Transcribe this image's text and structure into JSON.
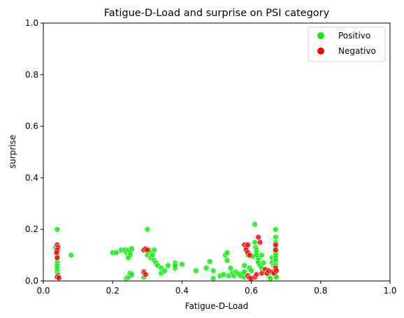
{
  "chart_data": {
    "type": "scatter",
    "title": "Fatigue-D-Load and surprise on PSI category",
    "xlabel": "Fatigue-D-Load",
    "ylabel": "surprise",
    "xlim": [
      0,
      1
    ],
    "ylim": [
      0,
      1
    ],
    "xticks": [
      "0.0",
      "0.2",
      "0.4",
      "0.6",
      "0.8",
      "1.0"
    ],
    "yticks": [
      "0.0",
      "0.2",
      "0.4",
      "0.6",
      "0.8",
      "1.0"
    ],
    "grid": false,
    "legend_position": "top-right",
    "series": [
      {
        "name": "Positivo",
        "color": "#00ee00",
        "points": [
          [
            0.04,
            0.2
          ],
          [
            0.035,
            0.13
          ],
          [
            0.04,
            0.12
          ],
          [
            0.038,
            0.11
          ],
          [
            0.04,
            0.1
          ],
          [
            0.04,
            0.09
          ],
          [
            0.04,
            0.08
          ],
          [
            0.04,
            0.07
          ],
          [
            0.04,
            0.06
          ],
          [
            0.04,
            0.05
          ],
          [
            0.04,
            0.04
          ],
          [
            0.04,
            0.03
          ],
          [
            0.042,
            0.025
          ],
          [
            0.08,
            0.1
          ],
          [
            0.2,
            0.11
          ],
          [
            0.21,
            0.11
          ],
          [
            0.225,
            0.12
          ],
          [
            0.235,
            0.12
          ],
          [
            0.24,
            0.11
          ],
          [
            0.245,
            0.12
          ],
          [
            0.25,
            0.11
          ],
          [
            0.255,
            0.125
          ],
          [
            0.25,
            0.1
          ],
          [
            0.245,
            0.09
          ],
          [
            0.24,
            0.01
          ],
          [
            0.245,
            0.015
          ],
          [
            0.25,
            0.02
          ],
          [
            0.25,
            0.03
          ],
          [
            0.255,
            0.025
          ],
          [
            0.29,
            0.12
          ],
          [
            0.3,
            0.2
          ],
          [
            0.305,
            0.12
          ],
          [
            0.31,
            0.11
          ],
          [
            0.3,
            0.1
          ],
          [
            0.31,
            0.09
          ],
          [
            0.315,
            0.1
          ],
          [
            0.32,
            0.12
          ],
          [
            0.32,
            0.08
          ],
          [
            0.325,
            0.07
          ],
          [
            0.33,
            0.06
          ],
          [
            0.34,
            0.05
          ],
          [
            0.34,
            0.03
          ],
          [
            0.35,
            0.04
          ],
          [
            0.36,
            0.06
          ],
          [
            0.38,
            0.07
          ],
          [
            0.38,
            0.05
          ],
          [
            0.38,
            0.06
          ],
          [
            0.4,
            0.065
          ],
          [
            0.29,
            0.015
          ],
          [
            0.44,
            0.04
          ],
          [
            0.47,
            0.05
          ],
          [
            0.48,
            0.075
          ],
          [
            0.49,
            0.04
          ],
          [
            0.49,
            0.01
          ],
          [
            0.51,
            0.02
          ],
          [
            0.52,
            0.025
          ],
          [
            0.525,
            0.1
          ],
          [
            0.53,
            0.11
          ],
          [
            0.53,
            0.08
          ],
          [
            0.535,
            0.02
          ],
          [
            0.54,
            0.05
          ],
          [
            0.545,
            0.03
          ],
          [
            0.55,
            0.02
          ],
          [
            0.555,
            0.035
          ],
          [
            0.56,
            0.03
          ],
          [
            0.565,
            0.025
          ],
          [
            0.57,
            0.02
          ],
          [
            0.575,
            0.03
          ],
          [
            0.58,
            0.015
          ],
          [
            0.58,
            0.035
          ],
          [
            0.58,
            0.06
          ],
          [
            0.585,
            0.14
          ],
          [
            0.59,
            0.1
          ],
          [
            0.595,
            0.05
          ],
          [
            0.6,
            0.04
          ],
          [
            0.6,
            0.1
          ],
          [
            0.605,
            0.095
          ],
          [
            0.61,
            0.22
          ],
          [
            0.61,
            0.15
          ],
          [
            0.612,
            0.13
          ],
          [
            0.615,
            0.12
          ],
          [
            0.615,
            0.11
          ],
          [
            0.615,
            0.1
          ],
          [
            0.62,
            0.09
          ],
          [
            0.62,
            0.08
          ],
          [
            0.62,
            0.07
          ],
          [
            0.625,
            0.06
          ],
          [
            0.63,
            0.05
          ],
          [
            0.63,
            0.1
          ],
          [
            0.635,
            0.07
          ],
          [
            0.64,
            0.04
          ],
          [
            0.645,
            0.03
          ],
          [
            0.65,
            0.02
          ],
          [
            0.655,
            0.01
          ],
          [
            0.66,
            0.09
          ],
          [
            0.66,
            0.07
          ],
          [
            0.665,
            0.06
          ],
          [
            0.67,
            0.2
          ],
          [
            0.67,
            0.17
          ],
          [
            0.67,
            0.15
          ],
          [
            0.67,
            0.13
          ],
          [
            0.67,
            0.12
          ],
          [
            0.67,
            0.11
          ],
          [
            0.67,
            0.1
          ],
          [
            0.67,
            0.09
          ],
          [
            0.67,
            0.08
          ],
          [
            0.67,
            0.06
          ],
          [
            0.67,
            0.05
          ],
          [
            0.67,
            0.03
          ],
          [
            0.67,
            0.02
          ],
          [
            0.672,
            0.015
          ]
        ]
      },
      {
        "name": "Negativo",
        "color": "#ff0000",
        "points": [
          [
            0.04,
            0.14
          ],
          [
            0.042,
            0.13
          ],
          [
            0.04,
            0.12
          ],
          [
            0.038,
            0.11
          ],
          [
            0.04,
            0.09
          ],
          [
            0.042,
            0.02
          ],
          [
            0.04,
            0.015
          ],
          [
            0.045,
            0.012
          ],
          [
            0.29,
            0.12
          ],
          [
            0.295,
            0.125
          ],
          [
            0.29,
            0.035
          ],
          [
            0.295,
            0.025
          ],
          [
            0.3,
            0.12
          ],
          [
            0.58,
            0.14
          ],
          [
            0.585,
            0.13
          ],
          [
            0.59,
            0.14
          ],
          [
            0.585,
            0.12
          ],
          [
            0.59,
            0.11
          ],
          [
            0.595,
            0.1
          ],
          [
            0.59,
            0.02
          ],
          [
            0.595,
            0.012
          ],
          [
            0.6,
            0.01
          ],
          [
            0.61,
            0.015
          ],
          [
            0.615,
            0.025
          ],
          [
            0.62,
            0.17
          ],
          [
            0.625,
            0.15
          ],
          [
            0.63,
            0.03
          ],
          [
            0.64,
            0.045
          ],
          [
            0.645,
            0.03
          ],
          [
            0.65,
            0.04
          ],
          [
            0.66,
            0.035
          ],
          [
            0.665,
            0.03
          ],
          [
            0.67,
            0.14
          ],
          [
            0.67,
            0.12
          ],
          [
            0.67,
            0.05
          ],
          [
            0.672,
            0.04
          ]
        ]
      }
    ]
  }
}
